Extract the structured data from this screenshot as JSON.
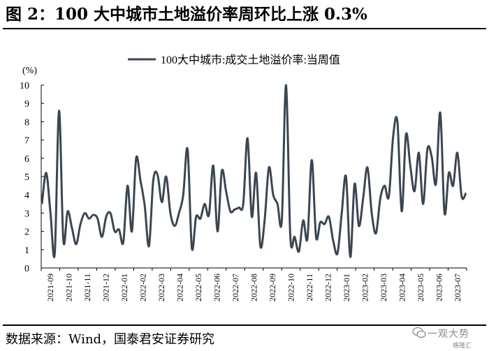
{
  "header": {
    "title": "图 2：100 大中城市土地溢价率周环比上涨 0.3%"
  },
  "footer": {
    "source": "数据来源：Wind，国泰君安证券研究"
  },
  "watermark": {
    "name": "一观大势",
    "sub": "格隆汇",
    "icon": "wechat-icon"
  },
  "colors": {
    "line": "#3b4653",
    "axis": "#000000",
    "text": "#000000"
  },
  "chart_data": {
    "type": "line",
    "unit_label": "(%)",
    "ylim": [
      0,
      10
    ],
    "yticks": [
      0,
      1,
      2,
      3,
      4,
      5,
      6,
      7,
      8,
      9,
      10
    ],
    "grid": false,
    "legend_position": "top-center",
    "x_tick_labels": [
      "2021-09",
      "2021-10",
      "2021-11",
      "2021-12",
      "2022-01",
      "2022-02",
      "2022-03",
      "2022-04",
      "2022-05",
      "2022-06",
      "2022-07",
      "2022-08",
      "2022-09",
      "2022-10",
      "2022-11",
      "2022-12",
      "2023-01",
      "2023-02",
      "2023-03",
      "2023-04",
      "2023-05",
      "2023-06",
      "2023-07"
    ],
    "series": [
      {
        "name": "100大中城市:成交土地溢价率:当周值",
        "values": [
          3.5,
          5.2,
          3.0,
          0.8,
          8.6,
          1.5,
          3.1,
          2.2,
          1.3,
          2.4,
          3.0,
          2.7,
          2.9,
          2.7,
          1.7,
          2.8,
          3.0,
          2.0,
          2.1,
          1.4,
          4.5,
          2.0,
          6.0,
          4.8,
          3.4,
          1.2,
          4.8,
          5.1,
          3.6,
          5.0,
          3.0,
          2.3,
          3.0,
          4.0,
          6.5,
          1.1,
          2.8,
          2.7,
          3.5,
          2.9,
          5.6,
          2.0,
          5.3,
          4.2,
          3.1,
          3.2,
          3.3,
          3.5,
          7.1,
          2.8,
          5.2,
          1.2,
          2.6,
          5.5,
          4.0,
          3.5,
          2.6,
          10.0,
          1.7,
          1.7,
          0.9,
          2.6,
          1.6,
          5.9,
          1.7,
          2.5,
          2.4,
          2.8,
          1.5,
          0.8,
          3.0,
          5.0,
          0.6,
          4.6,
          2.3,
          3.8,
          5.5,
          3.0,
          1.9,
          3.8,
          4.5,
          3.9,
          7.2,
          8.0,
          3.1,
          7.3,
          5.6,
          4.2,
          6.3,
          3.5,
          6.5,
          6.1,
          4.6,
          8.5,
          3.0,
          5.2,
          4.5,
          6.3,
          3.9,
          4.1
        ]
      }
    ]
  }
}
